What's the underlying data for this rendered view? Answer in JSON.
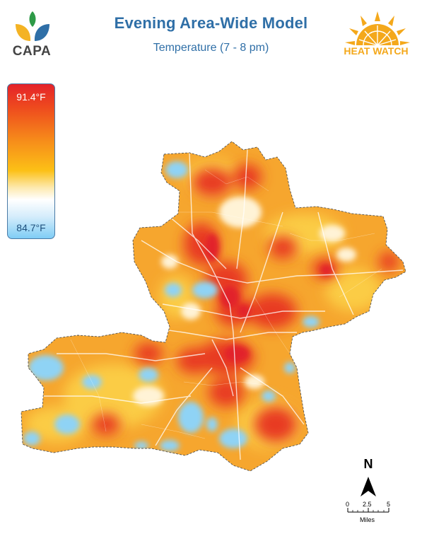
{
  "header": {
    "title": "Evening Area-Wide Model",
    "subtitle": "Temperature (7 - 8 pm)"
  },
  "logos": {
    "left": {
      "text": "CAPA",
      "icon": "leaf-logo-icon",
      "colors": [
        "#2e9a47",
        "#f4b324",
        "#2f6fa7"
      ]
    },
    "right": {
      "text": "HEAT WATCH",
      "icon": "sun-logo-icon",
      "color": "#f4a81b"
    }
  },
  "legend": {
    "max_label": "91.4°F",
    "min_label": "84.7°F",
    "colors": [
      "#e4222a",
      "#f7901a",
      "#fcc016",
      "#ffffff",
      "#7fcdf5"
    ]
  },
  "map": {
    "north_label": "N",
    "scale": {
      "ticks": [
        "0",
        "2.5",
        "5"
      ],
      "unit": "Miles"
    },
    "palette": {
      "hot": "#e4222a",
      "warm": "#f39a1e",
      "mild": "#fbc93a",
      "neutral": "#fff4d8",
      "cool": "#8fd3f5"
    }
  }
}
